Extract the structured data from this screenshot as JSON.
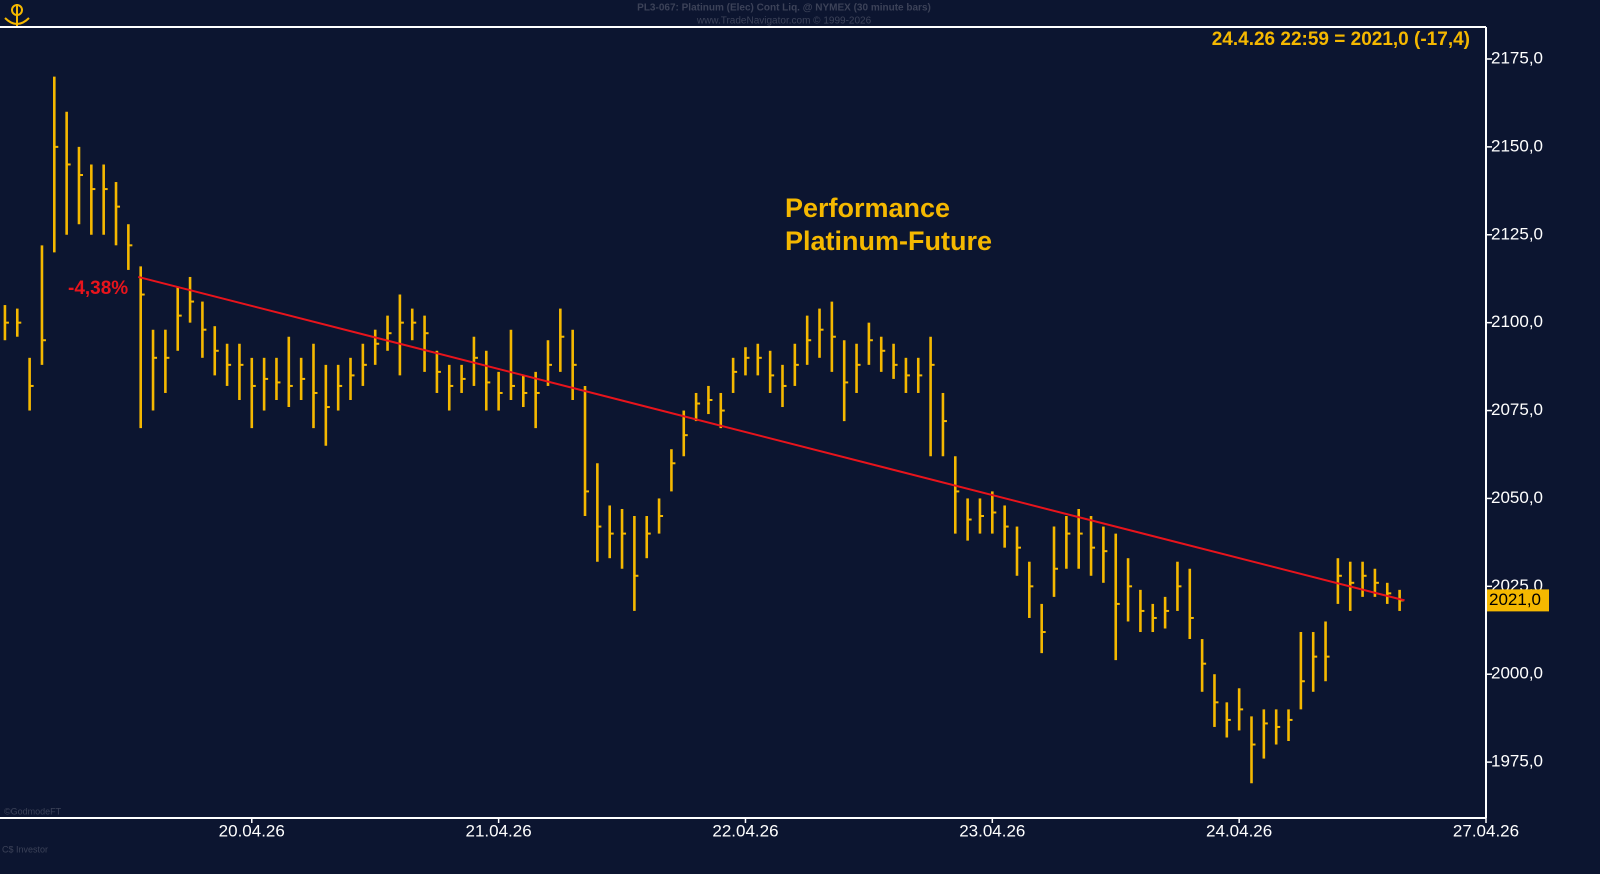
{
  "chart_data": {
    "type": "ohlc",
    "header": "PL3-067:  Platinum (Elec) Cont Liq. @ NYMEX  (30 minute bars)",
    "subheader": "www.TradeNavigator.com © 1999-2026",
    "title": [
      "Performance",
      "Platinum-Future"
    ],
    "info": "24.4.26 22:59 = 2021,0 (-17,4)",
    "annotation": "-4,38%",
    "footer": [
      "©GodmodeFT",
      "C$ Investor"
    ],
    "color": "#f5b800",
    "x": [
      -1,
      -0.95,
      -0.9,
      -0.85,
      -0.8,
      -0.75,
      -0.7,
      -0.65,
      -0.6,
      -0.55,
      -0.5,
      -0.45,
      -0.4,
      -0.35,
      -0.3,
      -0.25,
      -0.2,
      -0.15,
      -0.1,
      -0.05,
      0,
      0.05,
      0.1,
      0.15,
      0.2,
      0.25,
      0.3,
      0.35,
      0.4,
      0.45,
      0.5,
      0.55,
      0.6,
      0.65,
      0.7,
      0.75,
      0.8,
      0.85,
      0.9,
      0.95,
      1,
      1.05,
      1.1,
      1.15,
      1.2,
      1.25,
      1.3,
      1.35,
      1.4,
      1.45,
      1.5,
      1.55,
      1.6,
      1.65,
      1.7,
      1.75,
      1.8,
      1.85,
      1.9,
      1.95,
      2,
      2.05,
      2.1,
      2.15,
      2.2,
      2.25,
      2.3,
      2.35,
      2.4,
      2.45,
      2.5,
      2.55,
      2.6,
      2.65,
      2.7,
      2.75,
      2.8,
      2.85,
      2.9,
      2.95,
      3,
      3.05,
      3.1,
      3.15,
      3.2,
      3.25,
      3.3,
      3.35,
      3.4,
      3.45,
      3.5,
      3.55,
      3.6,
      3.65,
      3.7,
      3.75,
      3.8,
      3.85,
      3.9,
      3.95,
      4,
      4.05,
      4.1,
      4.15,
      4.2,
      4.25,
      4.3,
      4.35,
      4.4,
      4.45,
      4.5,
      4.55,
      4.6,
      4.65
    ],
    "high": [
      2105,
      2104,
      2090,
      2122,
      2170,
      2160,
      2150,
      2145,
      2145,
      2140,
      2128,
      2116,
      2098,
      2098,
      2110,
      2113,
      2106,
      2099,
      2094,
      2094,
      2090,
      2090,
      2090,
      2096,
      2090,
      2094,
      2088,
      2088,
      2090,
      2094,
      2098,
      2102,
      2108,
      2104,
      2102,
      2092,
      2088,
      2088,
      2096,
      2092,
      2086,
      2098,
      2085,
      2086,
      2095,
      2104,
      2098,
      2082,
      2060,
      2048,
      2047,
      2045,
      2045,
      2050,
      2064,
      2075,
      2080,
      2082,
      2080,
      2090,
      2093,
      2094,
      2092,
      2088,
      2094,
      2102,
      2104,
      2106,
      2095,
      2094,
      2100,
      2096,
      2094,
      2090,
      2090,
      2096,
      2080,
      2062,
      2050,
      2050,
      2052,
      2048,
      2042,
      2032,
      2020,
      2042,
      2045,
      2047,
      2045,
      2042,
      2040,
      2033,
      2024,
      2020,
      2022,
      2032,
      2030,
      2010,
      2000,
      1992,
      1996,
      1988,
      1990,
      1990,
      1990,
      2012,
      2012,
      2015,
      2033,
      2032,
      2032,
      2030,
      2026,
      2024
    ],
    "low": [
      2095,
      2096,
      2075,
      2088,
      2120,
      2125,
      2128,
      2125,
      2125,
      2122,
      2115,
      2070,
      2075,
      2080,
      2092,
      2100,
      2090,
      2085,
      2082,
      2078,
      2070,
      2075,
      2078,
      2076,
      2078,
      2070,
      2065,
      2075,
      2078,
      2082,
      2088,
      2092,
      2085,
      2095,
      2086,
      2080,
      2075,
      2080,
      2082,
      2075,
      2075,
      2078,
      2076,
      2070,
      2082,
      2086,
      2078,
      2045,
      2032,
      2033,
      2030,
      2018,
      2033,
      2040,
      2052,
      2062,
      2072,
      2074,
      2070,
      2080,
      2085,
      2085,
      2080,
      2076,
      2082,
      2088,
      2090,
      2086,
      2072,
      2080,
      2088,
      2086,
      2084,
      2080,
      2080,
      2062,
      2062,
      2040,
      2038,
      2040,
      2040,
      2036,
      2028,
      2016,
      2006,
      2022,
      2030,
      2030,
      2028,
      2026,
      2004,
      2015,
      2012,
      2012,
      2013,
      2018,
      2010,
      1995,
      1985,
      1982,
      1984,
      1969,
      1976,
      1980,
      1981,
      1990,
      1995,
      1998,
      2020,
      2018,
      2022,
      2022,
      2020,
      2018
    ],
    "close": [
      2100,
      2100,
      2082,
      2095,
      2150,
      2145,
      2142,
      2138,
      2138,
      2133,
      2122,
      2108,
      2090,
      2090,
      2102,
      2106,
      2098,
      2092,
      2088,
      2088,
      2082,
      2084,
      2083,
      2082,
      2084,
      2080,
      2076,
      2082,
      2085,
      2088,
      2094,
      2097,
      2100,
      2100,
      2097,
      2086,
      2082,
      2084,
      2090,
      2083,
      2080,
      2082,
      2080,
      2080,
      2088,
      2096,
      2088,
      2052,
      2042,
      2040,
      2040,
      2028,
      2040,
      2045,
      2060,
      2068,
      2077,
      2078,
      2075,
      2086,
      2090,
      2090,
      2085,
      2082,
      2088,
      2095,
      2098,
      2096,
      2083,
      2088,
      2095,
      2092,
      2088,
      2085,
      2085,
      2088,
      2072,
      2052,
      2044,
      2045,
      2046,
      2042,
      2036,
      2025,
      2012,
      2030,
      2040,
      2040,
      2036,
      2035,
      2020,
      2025,
      2018,
      2016,
      2018,
      2025,
      2016,
      2003,
      1992,
      1987,
      1990,
      1980,
      1986,
      1985,
      1987,
      1998,
      2005,
      2005,
      2028,
      2026,
      2028,
      2026,
      2023,
      2021
    ],
    "trendline": {
      "x": [
        -0.46,
        4.67
      ],
      "y": [
        2113,
        2021
      ],
      "color": "#e8141c"
    },
    "last_price": {
      "value": 2021,
      "label": "2021,0"
    },
    "xlim": [
      -1.02,
      5
    ],
    "xticks": [
      {
        "value": 0,
        "label": "20.04.26"
      },
      {
        "value": 1,
        "label": "21.04.26"
      },
      {
        "value": 2,
        "label": "22.04.26"
      },
      {
        "value": 3,
        "label": "23.04.26"
      },
      {
        "value": 4,
        "label": "24.04.26"
      },
      {
        "value": 5,
        "label": "27.04.26"
      }
    ],
    "ylim": [
      1959.1,
      2184.1
    ],
    "yticks": [
      {
        "value": 1975,
        "label": "1975,0"
      },
      {
        "value": 2000,
        "label": "2000,0"
      },
      {
        "value": 2025,
        "label": "2025,0"
      },
      {
        "value": 2050,
        "label": "2050,0"
      },
      {
        "value": 2075,
        "label": "2075,0"
      },
      {
        "value": 2100,
        "label": "2100,0"
      },
      {
        "value": 2125,
        "label": "2125,0"
      },
      {
        "value": 2150,
        "label": "2150,0"
      },
      {
        "value": 2175,
        "label": "2175,0"
      }
    ]
  }
}
